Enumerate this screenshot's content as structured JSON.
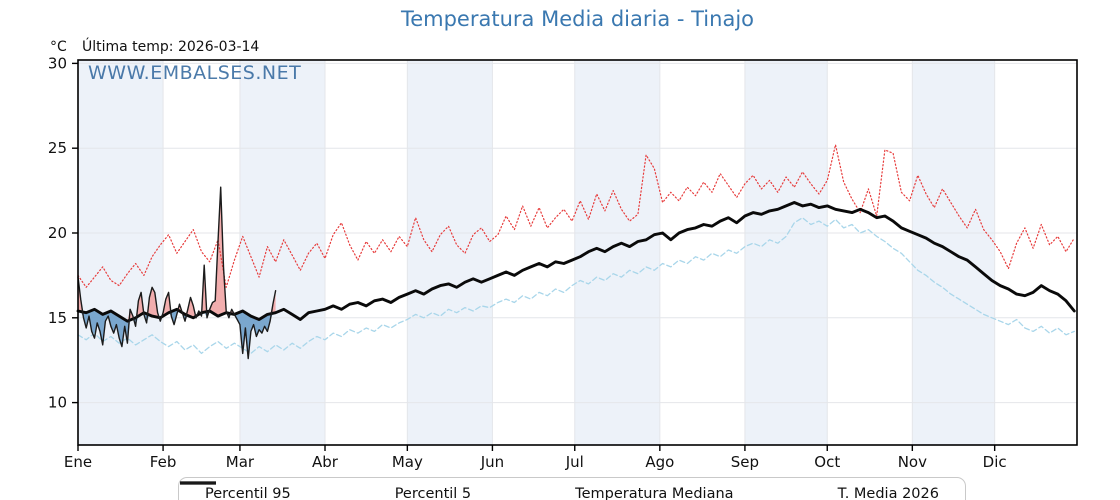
{
  "header": {
    "title": "Temperatura Media diaria - Tinajo",
    "unit_label": "°C",
    "last_temp_label": "Última temp: 2026-03-14",
    "watermark": "WWW.EMBALSES.NET"
  },
  "chart_data": {
    "type": "line",
    "title": "Temperatura Media diaria - Tinajo",
    "xlabel": "",
    "ylabel": "°C",
    "last_date": "2026-03-14",
    "ylim": [
      7.5,
      30.2
    ],
    "yticks": [
      10,
      15,
      20,
      25,
      30
    ],
    "months": [
      "Ene",
      "Feb",
      "Mar",
      "Abr",
      "May",
      "Jun",
      "Jul",
      "Ago",
      "Sep",
      "Oct",
      "Nov",
      "Dic"
    ],
    "month_days": [
      31,
      28,
      31,
      30,
      31,
      30,
      31,
      31,
      30,
      31,
      30,
      31
    ],
    "grid": true,
    "band_color": "#edf2f9",
    "grid_color": "#e4e6ea",
    "axis_color": "#000000",
    "legend_position": "bottom",
    "fills": {
      "above_color": "#f1a5a5",
      "below_color": "#6d9ec9"
    },
    "series": [
      {
        "name": "Percentil 95",
        "style": "dotted",
        "color": "#e73c3c",
        "day_start": 1,
        "day_step": 3,
        "values": [
          17.5,
          16.8,
          17.4,
          18.0,
          17.2,
          16.9,
          17.6,
          18.2,
          17.5,
          18.6,
          19.3,
          19.9,
          18.8,
          19.5,
          20.2,
          18.9,
          18.3,
          19.6,
          16.8,
          18.4,
          19.8,
          18.6,
          17.4,
          19.2,
          18.3,
          19.6,
          18.7,
          17.8,
          18.8,
          19.4,
          18.5,
          19.9,
          20.6,
          19.3,
          18.4,
          19.5,
          18.8,
          19.6,
          18.9,
          19.8,
          19.2,
          20.9,
          19.6,
          18.9,
          19.9,
          20.4,
          19.3,
          18.8,
          19.9,
          20.3,
          19.5,
          19.9,
          21.0,
          20.2,
          21.6,
          20.4,
          21.5,
          20.3,
          20.9,
          21.4,
          20.7,
          21.9,
          20.8,
          22.3,
          21.3,
          22.5,
          21.4,
          20.7,
          21.1,
          24.6,
          23.8,
          21.8,
          22.4,
          21.9,
          22.7,
          22.2,
          23.0,
          22.4,
          23.5,
          22.8,
          22.1,
          22.9,
          23.4,
          22.6,
          23.1,
          22.4,
          23.3,
          22.7,
          23.6,
          22.9,
          22.3,
          23.1,
          25.2,
          23.0,
          22.0,
          21.2,
          22.6,
          21.0,
          24.9,
          24.7,
          22.4,
          21.9,
          23.4,
          22.3,
          21.5,
          22.6,
          21.8,
          21.0,
          20.3,
          21.4,
          20.2,
          19.6,
          18.9,
          17.9,
          19.4,
          20.3,
          19.1,
          20.5,
          19.3,
          19.8,
          18.9,
          19.7
        ]
      },
      {
        "name": "Percentil 5",
        "style": "dashed",
        "color": "#a9d6ea",
        "day_start": 1,
        "day_step": 3,
        "values": [
          14.0,
          13.7,
          14.1,
          13.6,
          13.9,
          13.5,
          13.8,
          13.4,
          13.7,
          14.0,
          13.6,
          13.3,
          13.6,
          13.1,
          13.4,
          12.9,
          13.3,
          13.6,
          13.2,
          13.5,
          13.2,
          12.9,
          13.3,
          13.0,
          13.4,
          13.1,
          13.5,
          13.2,
          13.6,
          13.9,
          13.7,
          14.1,
          13.9,
          14.3,
          14.1,
          14.4,
          14.2,
          14.6,
          14.4,
          14.7,
          14.9,
          15.2,
          15.0,
          15.3,
          15.1,
          15.5,
          15.3,
          15.6,
          15.4,
          15.7,
          15.6,
          15.9,
          16.1,
          15.9,
          16.3,
          16.1,
          16.5,
          16.3,
          16.7,
          16.5,
          16.9,
          17.2,
          17.0,
          17.4,
          17.2,
          17.6,
          17.4,
          17.8,
          17.6,
          18.0,
          17.8,
          18.2,
          18.0,
          18.4,
          18.2,
          18.6,
          18.4,
          18.8,
          18.6,
          19.0,
          18.8,
          19.2,
          19.4,
          19.2,
          19.6,
          19.4,
          19.8,
          20.6,
          20.9,
          20.5,
          20.7,
          20.4,
          20.8,
          20.3,
          20.5,
          20.0,
          20.2,
          19.8,
          19.5,
          19.1,
          18.8,
          18.3,
          17.8,
          17.5,
          17.1,
          16.8,
          16.4,
          16.1,
          15.8,
          15.5,
          15.2,
          15.0,
          14.8,
          14.6,
          14.9,
          14.4,
          14.2,
          14.5,
          14.1,
          14.4,
          14.0,
          14.2
        ]
      },
      {
        "name": "Temperatura Mediana",
        "style": "solid-thick",
        "color": "#0a0a0a",
        "day_start": 1,
        "day_step": 3,
        "values": [
          15.4,
          15.3,
          15.5,
          15.2,
          15.4,
          15.1,
          14.8,
          15.0,
          15.3,
          15.1,
          15.0,
          15.3,
          15.5,
          15.2,
          15.0,
          15.3,
          15.4,
          15.1,
          15.3,
          15.2,
          15.4,
          15.1,
          14.9,
          15.2,
          15.3,
          15.5,
          15.2,
          14.9,
          15.3,
          15.4,
          15.5,
          15.7,
          15.5,
          15.8,
          15.9,
          15.7,
          16.0,
          16.1,
          15.9,
          16.2,
          16.4,
          16.6,
          16.4,
          16.7,
          16.9,
          17.0,
          16.8,
          17.1,
          17.3,
          17.1,
          17.3,
          17.5,
          17.7,
          17.5,
          17.8,
          18.0,
          18.2,
          18.0,
          18.3,
          18.2,
          18.4,
          18.6,
          18.9,
          19.1,
          18.9,
          19.2,
          19.4,
          19.2,
          19.5,
          19.6,
          19.9,
          20.0,
          19.6,
          20.0,
          20.2,
          20.3,
          20.5,
          20.4,
          20.7,
          20.9,
          20.6,
          21.0,
          21.2,
          21.1,
          21.3,
          21.4,
          21.6,
          21.8,
          21.6,
          21.7,
          21.5,
          21.6,
          21.4,
          21.3,
          21.2,
          21.4,
          21.2,
          20.9,
          21.0,
          20.7,
          20.3,
          20.1,
          19.9,
          19.7,
          19.4,
          19.2,
          18.9,
          18.6,
          18.4,
          18.0,
          17.6,
          17.2,
          16.9,
          16.7,
          16.4,
          16.3,
          16.5,
          16.9,
          16.6,
          16.4,
          16.0,
          15.4
        ]
      },
      {
        "name": "T. Media 2026",
        "style": "solid-thin",
        "color": "#1c1c1c",
        "day_start": 1,
        "day_step": 1,
        "fill_vs_median": true,
        "values": [
          17.4,
          16.1,
          15.0,
          14.4,
          15.1,
          14.2,
          13.8,
          14.7,
          14.2,
          13.4,
          14.8,
          15.1,
          14.5,
          14.1,
          14.6,
          13.8,
          13.3,
          14.5,
          13.5,
          15.5,
          15.1,
          14.5,
          16.0,
          16.5,
          15.2,
          14.7,
          16.2,
          16.8,
          16.5,
          15.3,
          14.8,
          15.3,
          16.1,
          16.5,
          15.1,
          14.6,
          15.2,
          15.8,
          15.3,
          14.8,
          15.5,
          16.2,
          15.7,
          15.0,
          15.4,
          15.1,
          18.1,
          15.0,
          15.5,
          15.9,
          16.0,
          19.5,
          22.7,
          18.0,
          15.4,
          15.0,
          15.5,
          15.2,
          14.9,
          14.6,
          12.9,
          14.4,
          12.6,
          14.2,
          14.6,
          13.9,
          14.3,
          14.1,
          14.5,
          14.2,
          14.8,
          15.8,
          16.6
        ]
      }
    ]
  },
  "legend": {
    "items": [
      {
        "label": "Percentil 95"
      },
      {
        "label": "Percentil 5"
      },
      {
        "label": "Temperatura Mediana"
      },
      {
        "label": "T. Media 2026"
      }
    ]
  }
}
